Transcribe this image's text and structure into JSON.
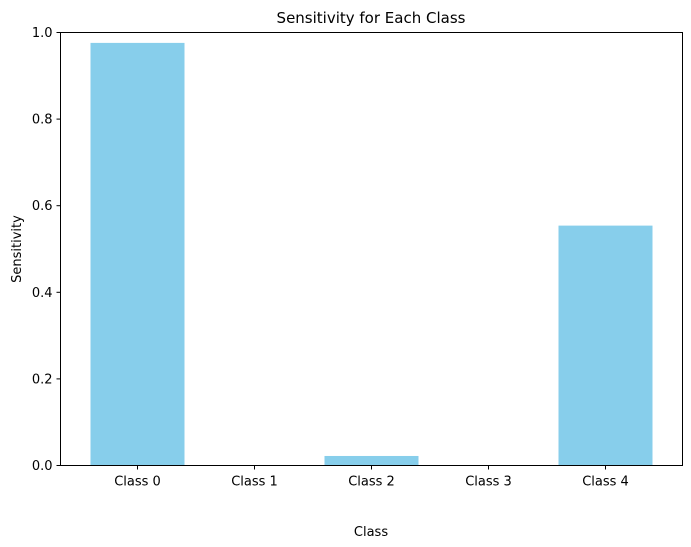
{
  "chart_data": {
    "type": "bar",
    "title": "Sensitivity for Each Class",
    "xlabel": "Class",
    "ylabel": "Sensitivity",
    "categories": [
      "Class 0",
      "Class 1",
      "Class 2",
      "Class 3",
      "Class 4"
    ],
    "values": [
      0.976,
      0.0,
      0.022,
      0.0,
      0.554
    ],
    "ylim": [
      0,
      1.0
    ],
    "yticks": [
      0.0,
      0.2,
      0.4,
      0.6,
      0.8,
      1.0
    ],
    "ytick_labels": [
      "0.0",
      "0.2",
      "0.4",
      "0.6",
      "0.8",
      "1.0"
    ],
    "bar_color": "#87ceeb",
    "grid": false,
    "legend": "none"
  }
}
